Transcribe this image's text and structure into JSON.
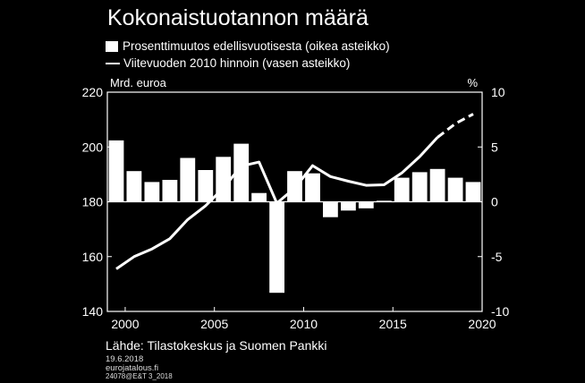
{
  "title": "Kokonaistuotannon määrä",
  "legend": {
    "bars": "Prosenttimuutos edellisvuotisesta (oikea asteikko)",
    "line": "Viitevuoden 2010 hinnoin (vasen asteikko)"
  },
  "source": "Lähde: Tilastokeskus ja Suomen Pankki",
  "date": "19.6.2018",
  "site": "eurojatalous.fi",
  "code": "24078@E&T 3_2018",
  "chart_data": {
    "type": "bar",
    "left_axis": {
      "label": "Mrd. euroa",
      "ticks": [
        140,
        160,
        180,
        200,
        220
      ],
      "range": [
        140,
        220
      ]
    },
    "right_axis": {
      "label": "%",
      "ticks": [
        -10,
        -5,
        0,
        5,
        10
      ],
      "range": [
        -10,
        10
      ]
    },
    "x_ticks": [
      2000,
      2005,
      2010,
      2015,
      2020
    ],
    "x_range": [
      1999,
      2020
    ],
    "bars": {
      "name": "Prosenttimuutos edellisvuotisesta (oikea asteikko)",
      "years": [
        1999,
        2000,
        2001,
        2002,
        2003,
        2004,
        2005,
        2006,
        2007,
        2008,
        2009,
        2010,
        2011,
        2012,
        2013,
        2014,
        2015,
        2016,
        2017,
        2018,
        2019
      ],
      "values": [
        5.6,
        2.8,
        1.8,
        2.0,
        4.0,
        2.9,
        4.1,
        5.3,
        0.8,
        -8.3,
        2.8,
        2.6,
        -1.4,
        -0.8,
        -0.6,
        0.1,
        2.2,
        2.7,
        3.0,
        2.2,
        1.8
      ]
    },
    "line": {
      "name": "Viitevuoden 2010 hinnoin (vasen asteikko)",
      "years": [
        1999,
        2000,
        2001,
        2002,
        2003,
        2004,
        2005,
        2006,
        2007,
        2008,
        2009,
        2010,
        2011,
        2012,
        2013,
        2014,
        2015,
        2016,
        2017,
        2018,
        2019
      ],
      "values": [
        155.5,
        160.0,
        162.8,
        166.5,
        173.5,
        178.5,
        185.0,
        193.0,
        194.5,
        179.5,
        185.0,
        193.2,
        189.2,
        187.5,
        186.0,
        186.2,
        190.5,
        196.5,
        203.5,
        208.5,
        212.0
      ],
      "forecast_from": 2017
    },
    "grid": false
  }
}
